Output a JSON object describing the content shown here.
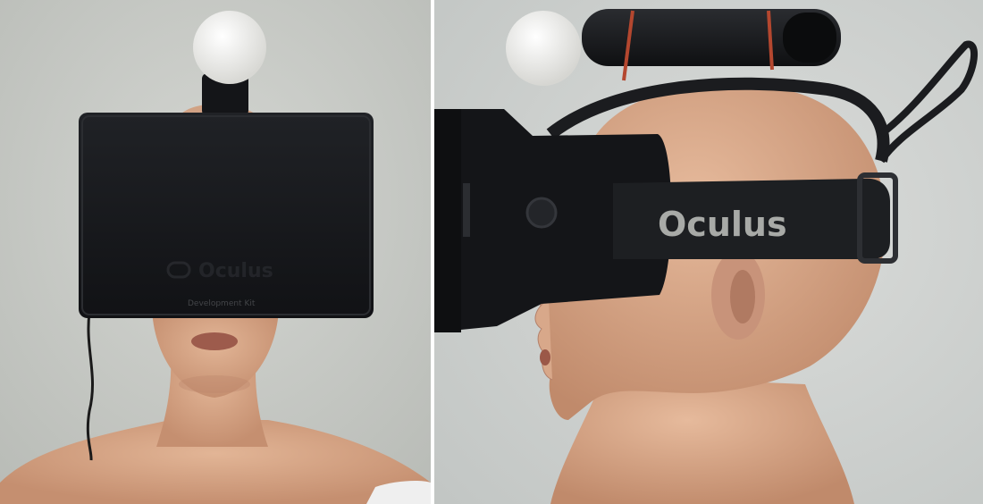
{
  "figure": {
    "left_panel": {
      "headset_brand_text": "Oculus",
      "headset_subtitle": "Development Kit"
    },
    "right_panel": {
      "strap_brand_text": "Oculus"
    }
  },
  "colors": {
    "wall_left": "#c8cac5",
    "wall_right": "#d3d6d3",
    "skin": "#d9a988",
    "skin_shadow": "#b9836a",
    "headset": "#151619",
    "strap": "#1d1f22",
    "ball": "#f4f4f2",
    "rubber_band": "#b4472f"
  }
}
